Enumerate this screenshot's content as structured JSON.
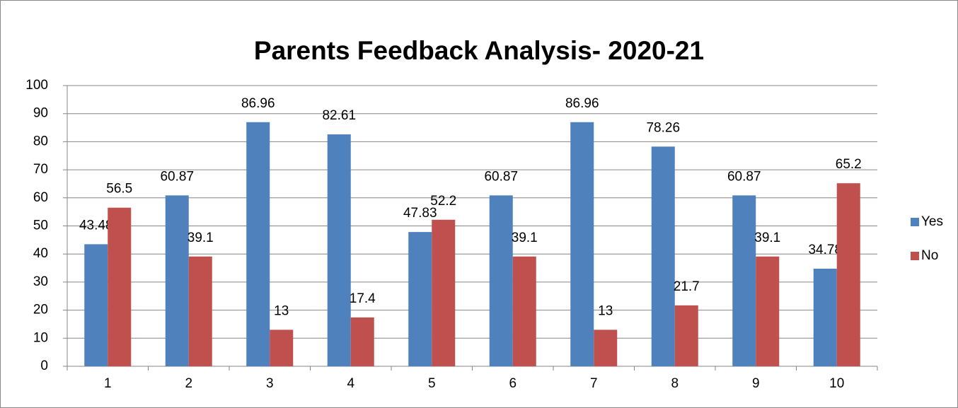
{
  "chart_data": {
    "type": "bar",
    "title": "Parents Feedback Analysis- 2020-21",
    "categories": [
      "1",
      "2",
      "3",
      "4",
      "5",
      "6",
      "7",
      "8",
      "9",
      "10"
    ],
    "series": [
      {
        "name": "Yes",
        "color": "#4f81bd",
        "values": [
          43.48,
          60.87,
          86.96,
          82.61,
          47.83,
          60.87,
          86.96,
          78.26,
          60.87,
          34.78
        ]
      },
      {
        "name": "No",
        "color": "#c0504d",
        "values": [
          56.5,
          39.1,
          13,
          17.4,
          52.2,
          39.1,
          13,
          21.7,
          39.1,
          65.2
        ]
      }
    ],
    "ylim": [
      0,
      100
    ],
    "yticks": [
      0,
      10,
      20,
      30,
      40,
      50,
      60,
      70,
      80,
      90,
      100
    ],
    "grid": true,
    "legend": "right"
  }
}
